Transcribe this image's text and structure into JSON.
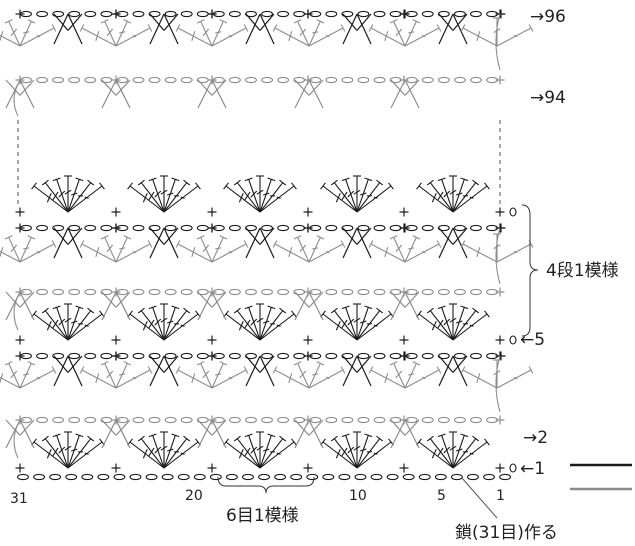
{
  "colors": {
    "main_yarn": "#1a1a1a",
    "contrast_yarn": "#8c8c8c"
  },
  "row_labels": {
    "r96": "→96",
    "r94": "→94",
    "r5": "←5",
    "r2": "→2",
    "r1": "←1"
  },
  "repeat_labels": {
    "vertical": "4段1模様",
    "horizontal": "6目1模様"
  },
  "stitch_numbers": {
    "n31": "31",
    "n20": "20",
    "n10": "10",
    "n5": "5",
    "n1": "1"
  },
  "foundation_note": "鎖(31目)作る",
  "legend": [
    {
      "color": "#1a1a1a"
    },
    {
      "color": "#8c8c8c"
    }
  ]
}
